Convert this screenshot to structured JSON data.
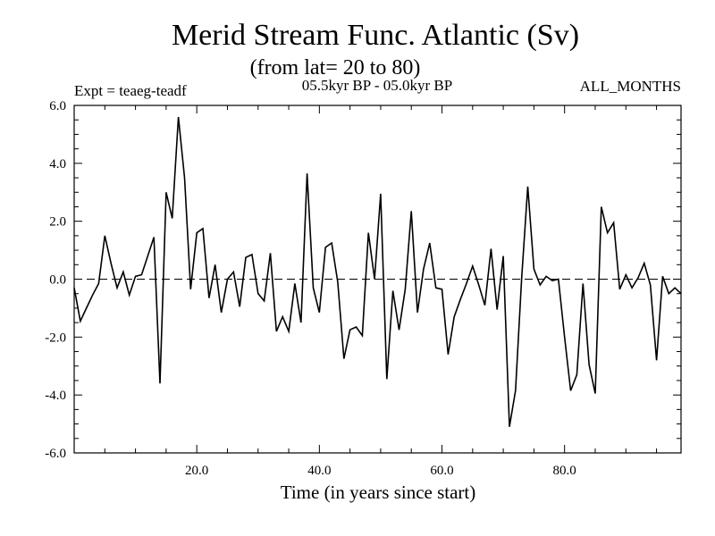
{
  "chart_data": {
    "type": "line",
    "title": "Merid Stream Func. Atlantic (Sv)",
    "subtitle": "(from lat= 20 to 80)",
    "experiment": "Expt = teaeg-teadf",
    "period": "05.5kyr BP - 05.0kyr BP",
    "months": "ALL_MONTHS",
    "xlabel": "Time (in years since start)",
    "ylabel": "",
    "xlim": [
      0,
      99
    ],
    "ylim": [
      -6,
      6
    ],
    "xticks": [
      20,
      40,
      60,
      80
    ],
    "xtick_labels": [
      "20.0",
      "40.0",
      "60.0",
      "80.0"
    ],
    "yticks": [
      -6,
      -4,
      -2,
      0,
      2,
      4,
      6
    ],
    "ytick_labels": [
      "-6.0",
      "-4.0",
      "-2.0",
      "0.0",
      "2.0",
      "4.0",
      "6.0"
    ],
    "reference_line": 0,
    "series": [
      {
        "name": "Merid Stream Func.",
        "x": [
          0,
          1,
          2,
          3,
          4,
          5,
          6,
          7,
          8,
          9,
          10,
          11,
          12,
          13,
          14,
          15,
          16,
          17,
          18,
          19,
          20,
          21,
          22,
          23,
          24,
          25,
          26,
          27,
          28,
          29,
          30,
          31,
          32,
          33,
          34,
          35,
          36,
          37,
          38,
          39,
          40,
          41,
          42,
          43,
          44,
          45,
          46,
          47,
          48,
          49,
          50,
          51,
          52,
          53,
          54,
          55,
          56,
          57,
          58,
          59,
          60,
          61,
          62,
          63,
          64,
          65,
          66,
          67,
          68,
          69,
          70,
          71,
          72,
          73,
          74,
          75,
          76,
          77,
          78,
          79,
          80,
          81,
          82,
          83,
          84,
          85,
          86,
          87,
          88,
          89,
          90,
          91,
          92,
          93,
          94,
          95,
          96,
          97,
          98,
          99
        ],
        "y": [
          -0.3,
          -1.45,
          -1.0,
          -0.55,
          -0.15,
          1.5,
          0.55,
          -0.3,
          0.25,
          -0.55,
          0.1,
          0.15,
          0.8,
          1.45,
          -3.6,
          3.0,
          2.1,
          5.6,
          3.5,
          -0.35,
          1.6,
          1.75,
          -0.65,
          0.5,
          -1.15,
          0.0,
          0.25,
          -0.95,
          0.75,
          0.85,
          -0.5,
          -0.75,
          0.9,
          -1.8,
          -1.3,
          -1.8,
          -0.15,
          -1.5,
          3.65,
          -0.3,
          -1.15,
          1.1,
          1.25,
          -0.1,
          -2.75,
          -1.75,
          -1.65,
          -1.95,
          1.6,
          0.0,
          2.95,
          -3.45,
          -0.4,
          -1.75,
          -0.35,
          2.35,
          -1.15,
          0.35,
          1.25,
          -0.3,
          -0.35,
          -2.6,
          -1.3,
          -0.7,
          -0.15,
          0.45,
          -0.2,
          -0.9,
          1.05,
          -1.05,
          0.8,
          -5.1,
          -3.85,
          0.05,
          3.2,
          0.35,
          -0.2,
          0.1,
          -0.05,
          0.0,
          -2.0,
          -3.85,
          -3.3,
          -0.15,
          -2.95,
          -3.95,
          2.5,
          1.6,
          1.95,
          -0.35,
          0.15,
          -0.3,
          0.05,
          0.55,
          -0.2,
          -2.8,
          0.1,
          -0.5,
          -0.3,
          -0.5
        ]
      }
    ]
  }
}
